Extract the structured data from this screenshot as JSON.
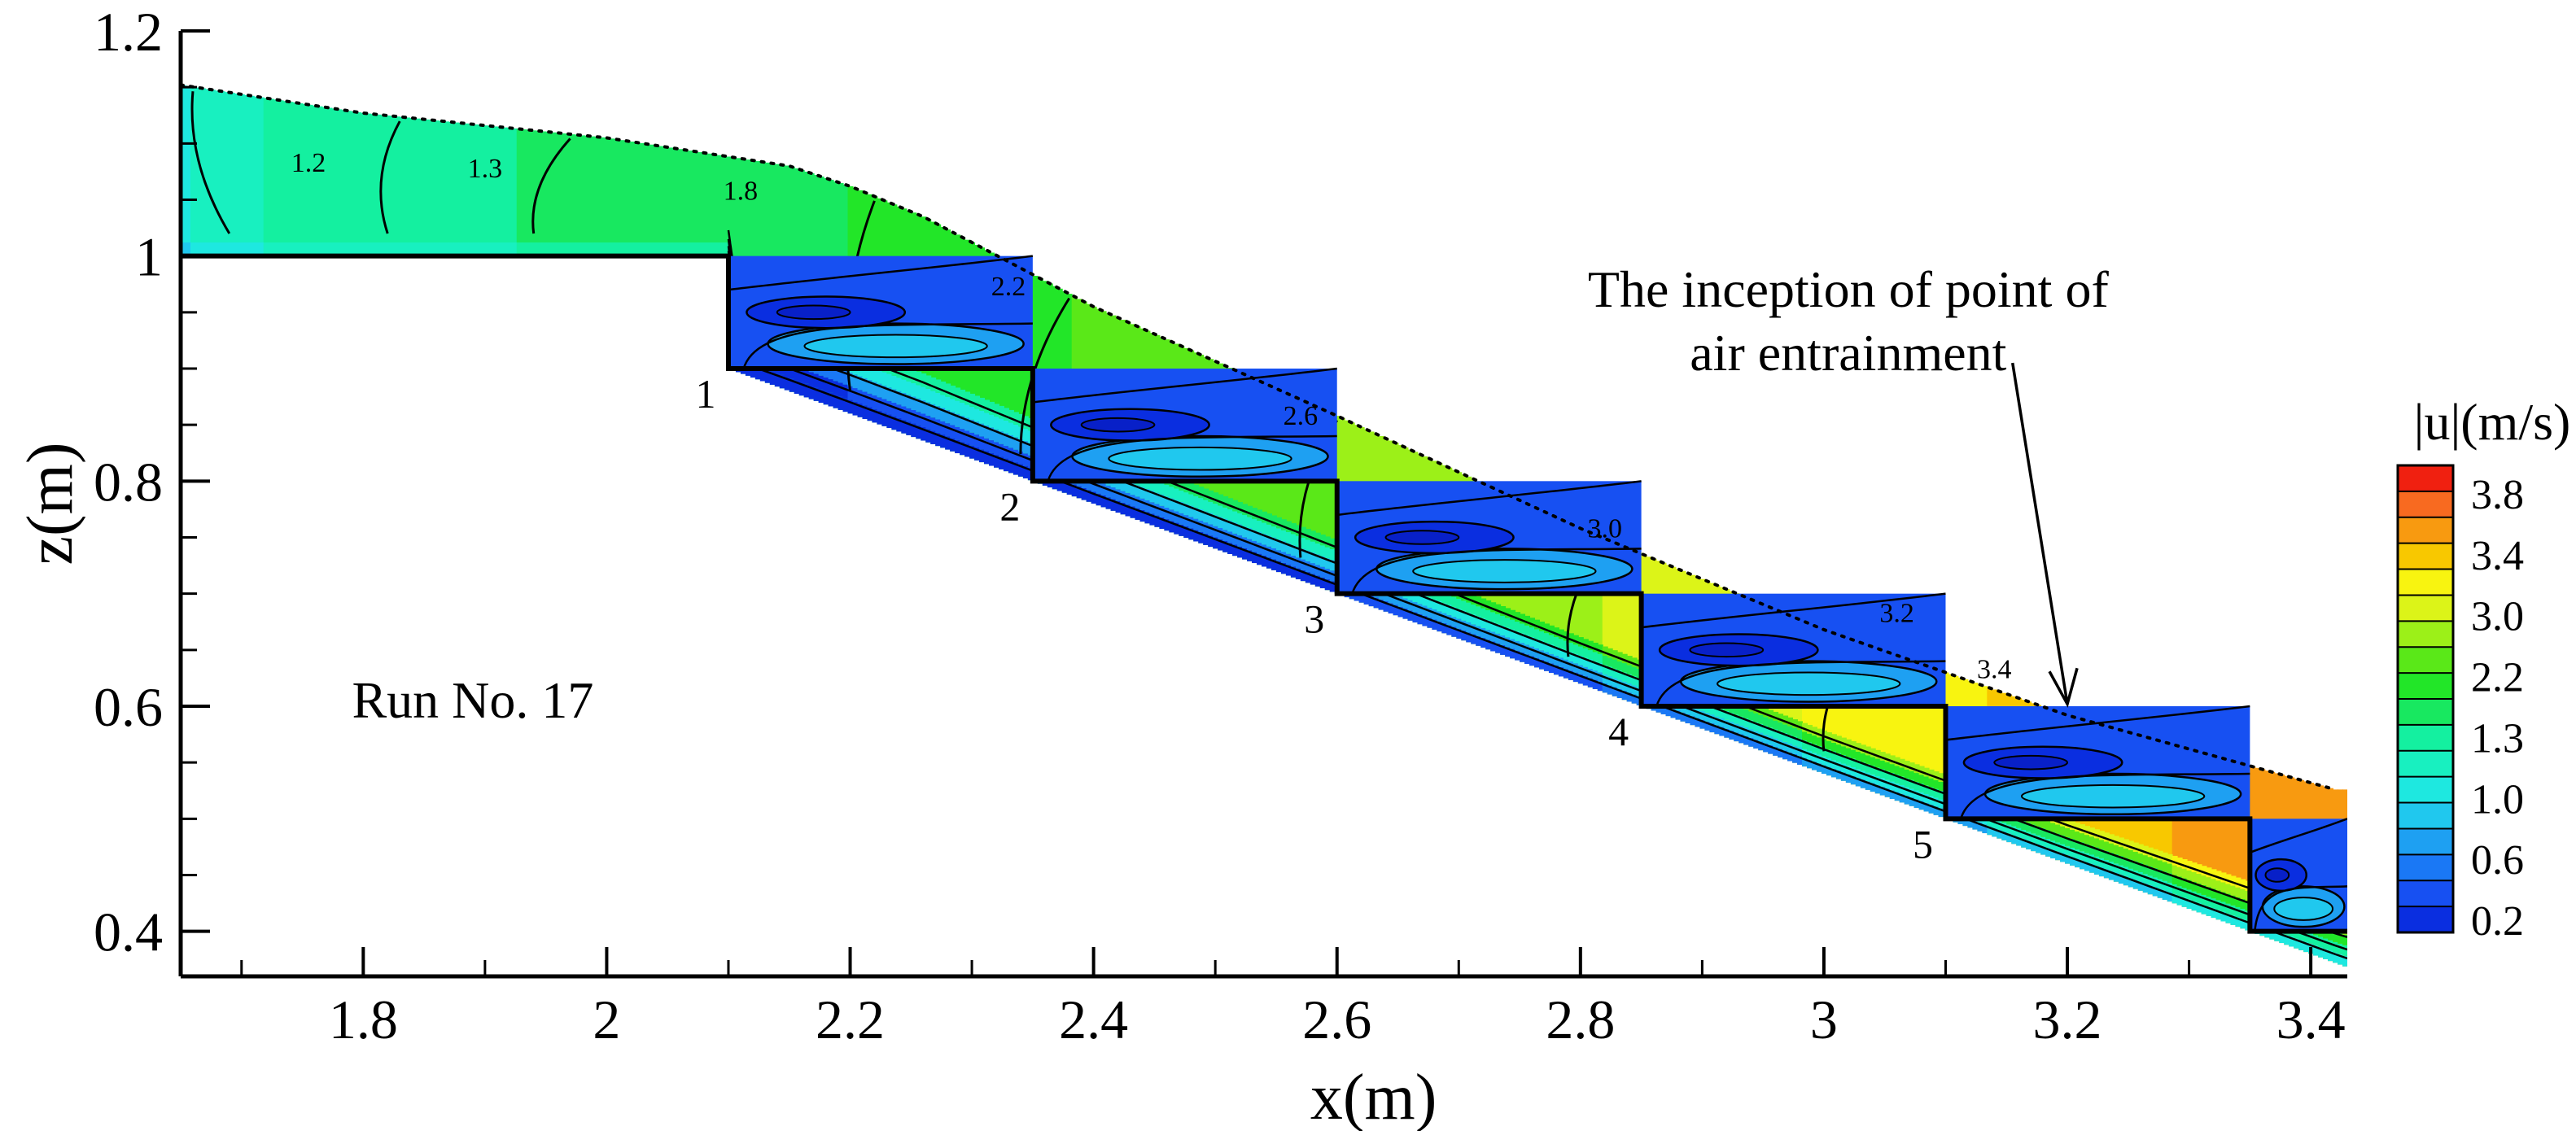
{
  "chart_data": {
    "type": "contour",
    "xlabel": "x(m)",
    "ylabel": "z(m)",
    "xlim": [
      1.65,
      3.43
    ],
    "ylim": [
      0.36,
      1.2
    ],
    "x_ticks": [
      "1.8",
      "2",
      "2.2",
      "2.4",
      "2.6",
      "2.8",
      "3",
      "3.2",
      "3.4"
    ],
    "y_ticks": [
      "0.4",
      "0.6",
      "0.8",
      "1",
      "1.2"
    ],
    "grid": false,
    "variable": "|u|(m/s)",
    "colorbar": {
      "title": "|u|(m/s)",
      "placement": "right",
      "tick_labels": [
        "3.8",
        "3.4",
        "3.0",
        "2.2",
        "1.3",
        "1.0",
        "0.6",
        "0.2"
      ],
      "levels": [
        0.2,
        0.4,
        0.6,
        0.8,
        1.0,
        1.1,
        1.2,
        1.3,
        1.8,
        2.2,
        2.6,
        2.8,
        3.0,
        3.2,
        3.4,
        3.6,
        3.8
      ],
      "colors": [
        "#0a2ee0",
        "#1750f2",
        "#1a78f5",
        "#1ea0f2",
        "#20c8ee",
        "#1ee8e0",
        "#18f0c0",
        "#14f0a0",
        "#18e860",
        "#22e628",
        "#5ae818",
        "#9cf018",
        "#dcf418",
        "#f8f410",
        "#f8c800",
        "#f89a10",
        "#f86a20",
        "#f02010"
      ]
    },
    "free_surface": {
      "style": "dotted",
      "x": [
        1.65,
        1.8,
        2.0,
        2.15,
        2.2,
        2.26,
        2.4,
        2.6,
        2.8,
        3.0,
        3.2,
        3.42
      ],
      "z": [
        1.152,
        1.127,
        1.105,
        1.08,
        1.062,
        1.035,
        0.955,
        0.858,
        0.758,
        0.668,
        0.592,
        0.526
      ]
    },
    "steps": [
      {
        "label": "1",
        "x_edge": 2.1,
        "z_tread": 0.9
      },
      {
        "label": "2",
        "x_edge": 2.35,
        "z_tread": 0.8
      },
      {
        "label": "3",
        "x_edge": 2.6,
        "z_tread": 0.7
      },
      {
        "label": "4",
        "x_edge": 2.85,
        "z_tread": 0.6
      },
      {
        "label": "5",
        "x_edge": 3.1,
        "z_tread": 0.5
      },
      {
        "label": "",
        "x_edge": 3.35,
        "z_tread": 0.4
      }
    ],
    "crest": {
      "x_start": 1.65,
      "x_end": 2.1,
      "z": 1.0
    },
    "contour_labels": [
      {
        "text": "1.2",
        "x": 1.755,
        "z": 1.075
      },
      {
        "text": "1.3",
        "x": 1.9,
        "z": 1.07
      },
      {
        "text": "1.8",
        "x": 2.11,
        "z": 1.05
      },
      {
        "text": "2.2",
        "x": 2.33,
        "z": 0.965
      },
      {
        "text": "2.6",
        "x": 2.57,
        "z": 0.85
      },
      {
        "text": "3.0",
        "x": 2.82,
        "z": 0.75
      },
      {
        "text": "3.2",
        "x": 3.06,
        "z": 0.675
      },
      {
        "text": "3.4",
        "x": 3.14,
        "z": 0.625
      }
    ],
    "annotations": [
      {
        "text_lines": [
          "The inception of point of",
          "air entrainment"
        ],
        "x": 3.02,
        "z": 0.955,
        "arrow_to": {
          "x": 3.2,
          "z": 0.602
        }
      },
      {
        "text_lines": [
          "Run No. 17"
        ],
        "x": 1.89,
        "z": 0.59
      }
    ]
  }
}
